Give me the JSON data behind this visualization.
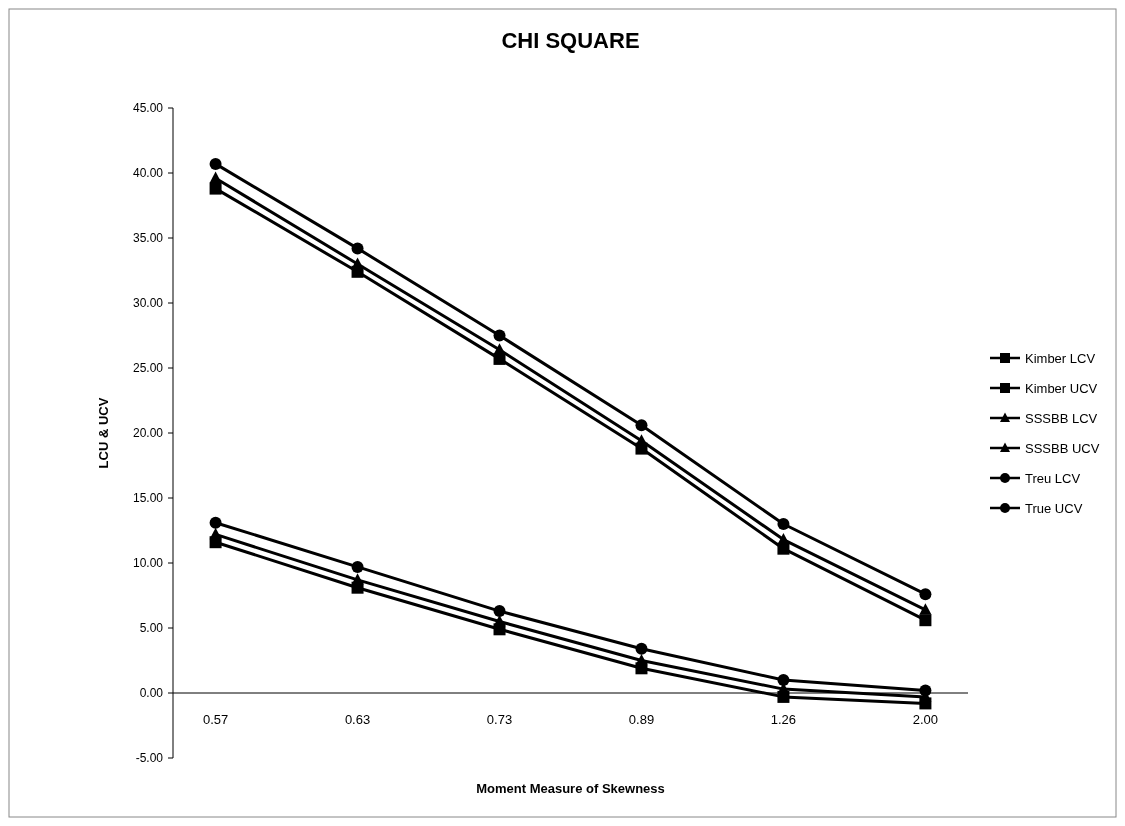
{
  "chart_data": {
    "type": "line",
    "title": "CHI SQUARE",
    "xlabel": "Moment Measure of Skewness",
    "ylabel": "LCU & UCV",
    "categories": [
      "0.57",
      "0.63",
      "0.73",
      "0.89",
      "1.26",
      "2.00"
    ],
    "ylim": [
      -5,
      45
    ],
    "yticks": [
      {
        "value": -5,
        "label": "-5.00"
      },
      {
        "value": 0,
        "label": "0.00"
      },
      {
        "value": 5,
        "label": "5.00"
      },
      {
        "value": 10,
        "label": "10.00"
      },
      {
        "value": 15,
        "label": "15.00"
      },
      {
        "value": 20,
        "label": "20.00"
      },
      {
        "value": 25,
        "label": "25.00"
      },
      {
        "value": 30,
        "label": "30.00"
      },
      {
        "value": 35,
        "label": "35.00"
      },
      {
        "value": 40,
        "label": "40.00"
      },
      {
        "value": 45,
        "label": "45.00"
      }
    ],
    "legend": "right",
    "grid": false,
    "series": [
      {
        "name": "Kimber LCV",
        "color": "#000000",
        "marker": "square",
        "values": [
          11.6,
          8.1,
          4.9,
          1.9,
          -0.3,
          -0.8
        ]
      },
      {
        "name": "Kimber UCV",
        "color": "#000000",
        "marker": "square",
        "values": [
          38.8,
          32.4,
          25.7,
          18.8,
          11.1,
          5.6
        ]
      },
      {
        "name": "SSSBB LCV",
        "color": "#000000",
        "marker": "triangle",
        "values": [
          12.2,
          8.7,
          5.5,
          2.5,
          0.3,
          -0.3
        ]
      },
      {
        "name": "SSSBB UCV",
        "color": "#000000",
        "marker": "triangle",
        "values": [
          39.6,
          33.0,
          26.4,
          19.4,
          11.8,
          6.4
        ]
      },
      {
        "name": "Treu LCV",
        "color": "#000000",
        "marker": "circle",
        "values": [
          13.1,
          9.7,
          6.3,
          3.4,
          1.0,
          0.2
        ]
      },
      {
        "name": "True UCV",
        "color": "#000000",
        "marker": "circle",
        "values": [
          40.7,
          34.2,
          27.5,
          20.6,
          13.0,
          7.6
        ]
      }
    ]
  }
}
